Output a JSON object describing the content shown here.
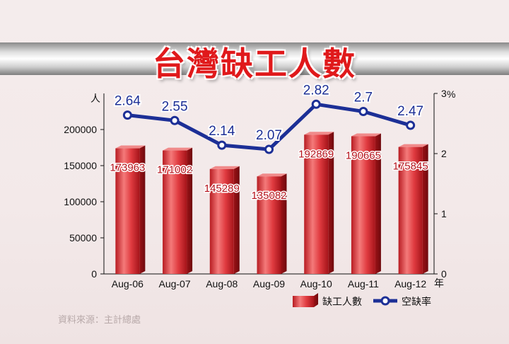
{
  "title": "台灣缺工人數",
  "source": "資料來源：主計總處",
  "chart_data": {
    "type": "bar",
    "categories": [
      "Aug-06",
      "Aug-07",
      "Aug-08",
      "Aug-09",
      "Aug-10",
      "Aug-11",
      "Aug-12"
    ],
    "x_unit": "年",
    "series": [
      {
        "name": "缺工人數",
        "type": "bar",
        "axis": "left",
        "values": [
          173963,
          171002,
          145289,
          135082,
          192869,
          190665,
          175845
        ],
        "color": "#d8333a"
      },
      {
        "name": "空缺率",
        "type": "line",
        "axis": "right",
        "values": [
          2.64,
          2.55,
          2.14,
          2.07,
          2.82,
          2.7,
          2.47
        ],
        "color": "#1c2f96"
      }
    ],
    "y_left": {
      "unit": "人",
      "min": 0,
      "max": 250000,
      "ticks": [
        0,
        50000,
        100000,
        150000,
        200000
      ]
    },
    "y_right": {
      "unit": "%",
      "min": 0,
      "max": 3,
      "ticks": [
        0,
        1,
        2,
        3
      ]
    },
    "legend": [
      "缺工人數",
      "空缺率"
    ],
    "legend_position": "bottom-right",
    "grid": false
  }
}
